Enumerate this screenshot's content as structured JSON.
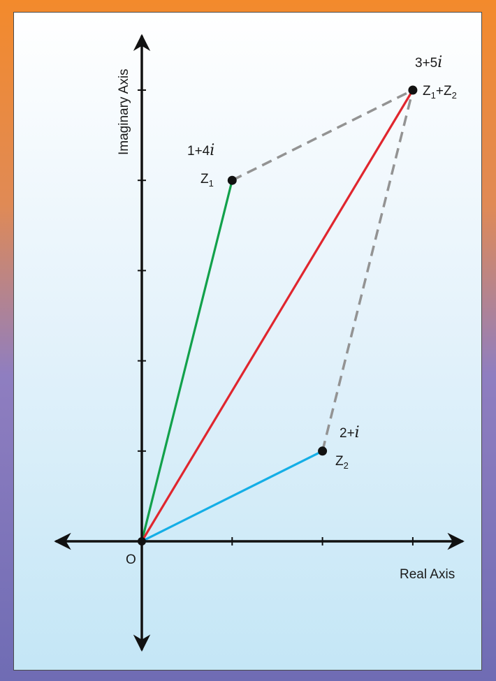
{
  "diagram": {
    "axes": {
      "x_label": "Real Axis",
      "y_label": "Imaginary Axis",
      "origin_label": "O",
      "x_range": [
        -1,
        3.6
      ],
      "y_range": [
        -1.25,
        5.65
      ]
    },
    "points": [
      {
        "id": "z1",
        "re": 1,
        "im": 4,
        "value_num": "1+4",
        "value_i": "i",
        "name_letter": "Z",
        "name_sub": "1",
        "vector_color": "#12a14b"
      },
      {
        "id": "z2",
        "re": 2,
        "im": 1,
        "value_num": "2+",
        "value_i": "i",
        "name_letter": "Z",
        "name_sub": "2",
        "vector_color": "#14aee6"
      },
      {
        "id": "sum",
        "re": 3,
        "im": 5,
        "value_num": "3+5",
        "value_i": "i",
        "name_letter": "Z",
        "name_sub_a": "1",
        "plus": "+",
        "name_letter_b": "Z",
        "name_sub_b": "2",
        "vector_color": "#e0262e"
      }
    ],
    "parallelogram_edges": {
      "style": "dashed",
      "color": "#939393",
      "from": [
        "z1",
        "z2"
      ],
      "to": "sum"
    },
    "colors": {
      "axis": "#111111",
      "frame_top": "#f38a2c",
      "frame_bottom": "#6f6cb4",
      "panel_top": "#ffffff",
      "panel_bottom": "#c4e6f6",
      "point": "#111111"
    }
  }
}
